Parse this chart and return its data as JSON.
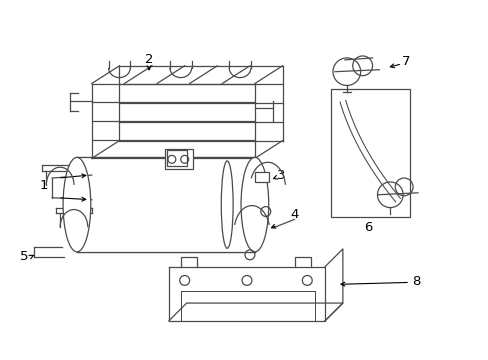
{
  "background_color": "#ffffff",
  "line_color": "#4a4a4a",
  "text_color": "#000000",
  "fig_width": 4.89,
  "fig_height": 3.6,
  "dpi": 100,
  "lw": 0.9
}
